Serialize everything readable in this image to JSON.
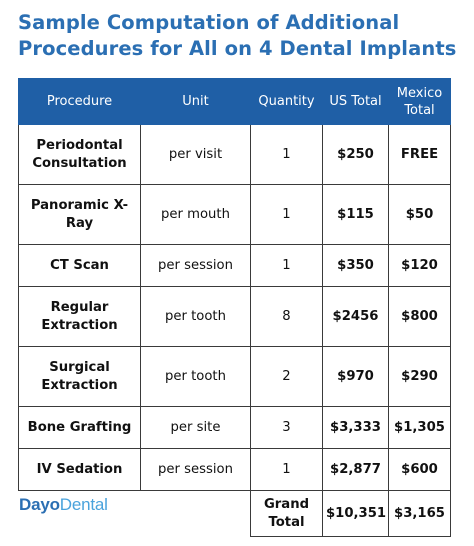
{
  "title_line1": "Sample Computation of Additional",
  "title_line2": "Procedures for All on 4 Dental Implants",
  "headers": {
    "procedure": "Procedure",
    "unit": "Unit",
    "quantity": "Quantity",
    "us_total": "US Total",
    "mexico_total_line1": "Mexico",
    "mexico_total_line2": "Total"
  },
  "rows": [
    {
      "procedure_line1": "Periodontal",
      "procedure_line2": "Consultation",
      "unit": "per visit",
      "quantity": "1",
      "us_total": "$250",
      "mexico_total": "FREE"
    },
    {
      "procedure_line1": "Panoramic X-",
      "procedure_line2": "Ray",
      "unit": "per mouth",
      "quantity": "1",
      "us_total": "$115",
      "mexico_total": "$50"
    },
    {
      "procedure_line1": "CT Scan",
      "procedure_line2": "",
      "unit": "per session",
      "quantity": "1",
      "us_total": "$350",
      "mexico_total": "$120"
    },
    {
      "procedure_line1": "Regular",
      "procedure_line2": "Extraction",
      "unit": "per tooth",
      "quantity": "8",
      "us_total": "$2456",
      "mexico_total": "$800"
    },
    {
      "procedure_line1": "Surgical",
      "procedure_line2": "Extraction",
      "unit": "per tooth",
      "quantity": "2",
      "us_total": "$970",
      "mexico_total": "$290"
    },
    {
      "procedure_line1": "Bone Grafting",
      "procedure_line2": "",
      "unit": "per site",
      "quantity": "3",
      "us_total": "$3,333",
      "mexico_total": "$1,305"
    },
    {
      "procedure_line1": "IV Sedation",
      "procedure_line2": "",
      "unit": "per session",
      "quantity": "1",
      "us_total": "$2,877",
      "mexico_total": "$600"
    }
  ],
  "footer": {
    "grand_total_line1": "Grand",
    "grand_total_line2": "Total",
    "us_total": "$10,351",
    "mexico_total": "$3,165"
  },
  "logo": {
    "part1": "Dayo",
    "part2": "Dental"
  },
  "colors": {
    "title": "#2b6fb3",
    "header_bg": "#1f5fa6",
    "logo_dayo": "#2b6fb3",
    "logo_dental": "#4aa3dc"
  }
}
